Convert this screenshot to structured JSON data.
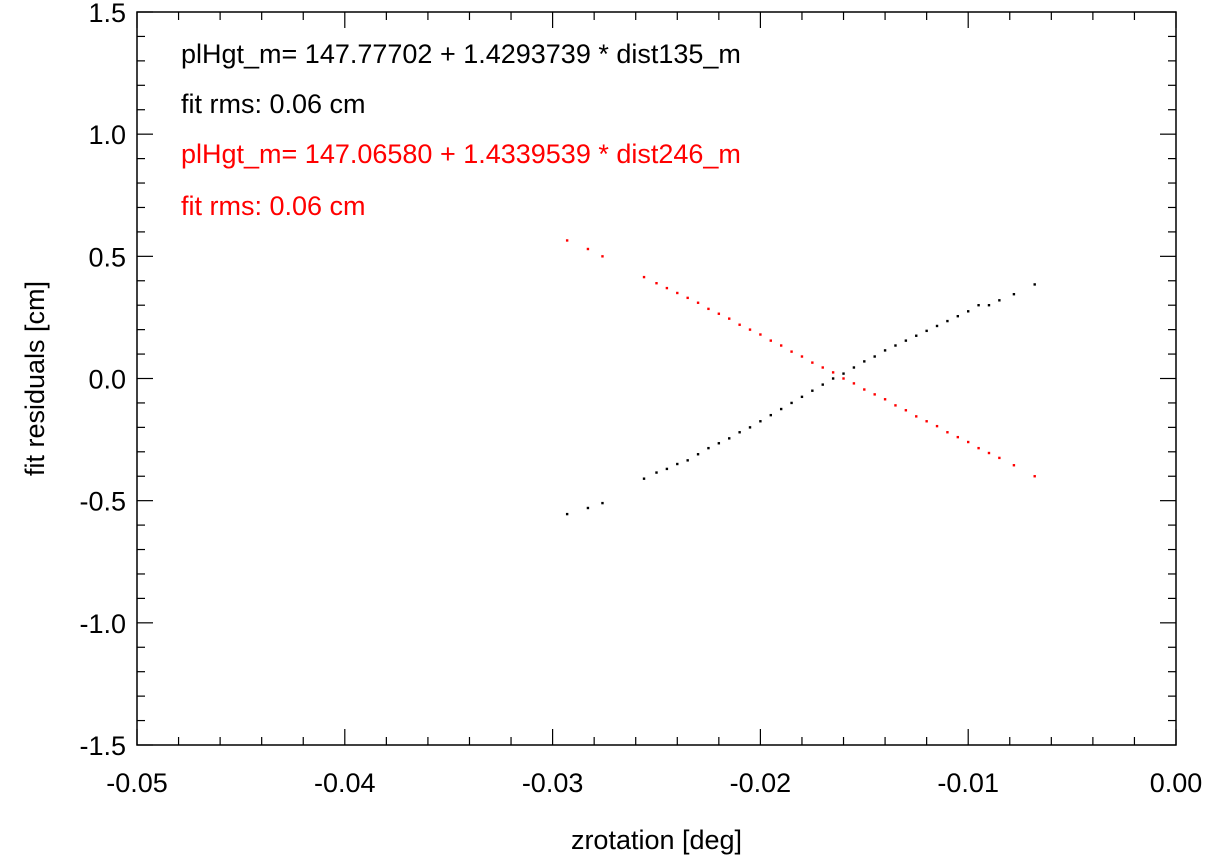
{
  "chart_data": {
    "type": "scatter",
    "xlabel": "zrotation [deg]",
    "ylabel": "fit residuals [cm]",
    "xlim": [
      -0.05,
      0.0
    ],
    "ylim": [
      -1.5,
      1.5
    ],
    "x_ticks": [
      -0.05,
      -0.04,
      -0.03,
      -0.02,
      -0.01,
      0.0
    ],
    "x_tick_labels": [
      "-0.05",
      "-0.04",
      "-0.03",
      "-0.02",
      "-0.01",
      "0.00"
    ],
    "y_ticks": [
      -1.5,
      -1.0,
      -0.5,
      0.0,
      0.5,
      1.0,
      1.5
    ],
    "y_tick_labels": [
      "-1.5",
      "-1.0",
      "-0.5",
      "0.0",
      "0.5",
      "1.0",
      "1.5"
    ],
    "grid": false,
    "annotations": [
      {
        "text": "plHgt_m= 147.77702 +  1.4293739 * dist135_m",
        "color": "#000000"
      },
      {
        "text": "fit rms:  0.06 cm",
        "color": "#000000"
      },
      {
        "text": "plHgt_m= 147.06580 +  1.4339539 * dist246_m",
        "color": "#ff0000"
      },
      {
        "text": "fit rms:  0.06 cm",
        "color": "#ff0000"
      }
    ],
    "series": [
      {
        "color": "#000000",
        "points": [
          [
            -0.0293,
            -0.555
          ],
          [
            -0.0283,
            -0.53
          ],
          [
            -0.0276,
            -0.51
          ],
          [
            -0.0256,
            -0.41
          ],
          [
            -0.025,
            -0.385
          ],
          [
            -0.0245,
            -0.37
          ],
          [
            -0.024,
            -0.35
          ],
          [
            -0.0235,
            -0.335
          ],
          [
            -0.023,
            -0.31
          ],
          [
            -0.0225,
            -0.285
          ],
          [
            -0.022,
            -0.265
          ],
          [
            -0.0215,
            -0.245
          ],
          [
            -0.021,
            -0.22
          ],
          [
            -0.0205,
            -0.2
          ],
          [
            -0.02,
            -0.175
          ],
          [
            -0.0195,
            -0.15
          ],
          [
            -0.019,
            -0.125
          ],
          [
            -0.0185,
            -0.1
          ],
          [
            -0.018,
            -0.075
          ],
          [
            -0.0175,
            -0.05
          ],
          [
            -0.017,
            -0.025
          ],
          [
            -0.0165,
            0.0
          ],
          [
            -0.016,
            0.02
          ],
          [
            -0.0155,
            0.045
          ],
          [
            -0.015,
            0.07
          ],
          [
            -0.0145,
            0.09
          ],
          [
            -0.014,
            0.115
          ],
          [
            -0.0135,
            0.135
          ],
          [
            -0.013,
            0.155
          ],
          [
            -0.0125,
            0.175
          ],
          [
            -0.012,
            0.195
          ],
          [
            -0.0115,
            0.215
          ],
          [
            -0.011,
            0.235
          ],
          [
            -0.0105,
            0.255
          ],
          [
            -0.01,
            0.275
          ],
          [
            -0.0095,
            0.3
          ],
          [
            -0.009,
            0.3
          ],
          [
            -0.0085,
            0.32
          ],
          [
            -0.0078,
            0.345
          ],
          [
            -0.0068,
            0.385
          ]
        ]
      },
      {
        "color": "#ff0000",
        "points": [
          [
            -0.0293,
            0.565
          ],
          [
            -0.0283,
            0.53
          ],
          [
            -0.0276,
            0.5
          ],
          [
            -0.0256,
            0.415
          ],
          [
            -0.025,
            0.39
          ],
          [
            -0.0245,
            0.37
          ],
          [
            -0.024,
            0.35
          ],
          [
            -0.0235,
            0.33
          ],
          [
            -0.023,
            0.31
          ],
          [
            -0.0225,
            0.285
          ],
          [
            -0.022,
            0.265
          ],
          [
            -0.0215,
            0.245
          ],
          [
            -0.021,
            0.22
          ],
          [
            -0.0205,
            0.2
          ],
          [
            -0.02,
            0.18
          ],
          [
            -0.0195,
            0.155
          ],
          [
            -0.019,
            0.135
          ],
          [
            -0.0185,
            0.11
          ],
          [
            -0.018,
            0.09
          ],
          [
            -0.0175,
            0.065
          ],
          [
            -0.017,
            0.045
          ],
          [
            -0.0165,
            0.025
          ],
          [
            -0.016,
            0.0
          ],
          [
            -0.0155,
            -0.02
          ],
          [
            -0.015,
            -0.045
          ],
          [
            -0.0145,
            -0.065
          ],
          [
            -0.014,
            -0.085
          ],
          [
            -0.0135,
            -0.11
          ],
          [
            -0.013,
            -0.13
          ],
          [
            -0.0125,
            -0.155
          ],
          [
            -0.012,
            -0.175
          ],
          [
            -0.0115,
            -0.195
          ],
          [
            -0.011,
            -0.22
          ],
          [
            -0.0105,
            -0.24
          ],
          [
            -0.01,
            -0.26
          ],
          [
            -0.0095,
            -0.285
          ],
          [
            -0.009,
            -0.305
          ],
          [
            -0.0085,
            -0.325
          ],
          [
            -0.0078,
            -0.355
          ],
          [
            -0.0068,
            -0.4
          ]
        ]
      }
    ]
  }
}
